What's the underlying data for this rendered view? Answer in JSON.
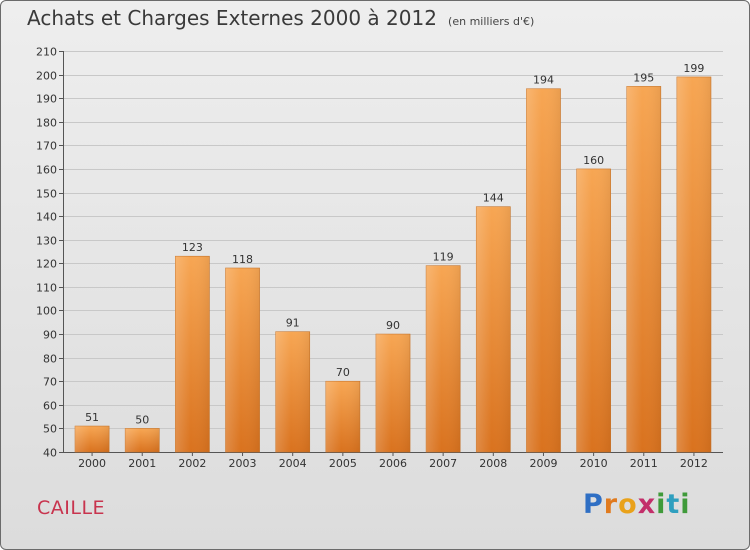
{
  "header": {
    "title": "Achats et Charges Externes 2000 à 2012",
    "subtitle": "(en milliers d'€)"
  },
  "footer": {
    "commune": "CAILLE",
    "brand": "Proxiti"
  },
  "colors": {
    "bar_top": "#f7a653",
    "bar_bottom": "#d9721e",
    "grid": "#c8c8c8",
    "commune_text": "#c8344e"
  },
  "chart_data": {
    "type": "bar",
    "categories": [
      "2000",
      "2001",
      "2002",
      "2003",
      "2004",
      "2005",
      "2006",
      "2007",
      "2008",
      "2009",
      "2010",
      "2011",
      "2012"
    ],
    "values": [
      51,
      50,
      123,
      118,
      91,
      70,
      90,
      119,
      144,
      194,
      160,
      195,
      199
    ],
    "data_labels": [
      "51",
      "50",
      "123",
      "118",
      "91",
      "70",
      "90",
      "119",
      "144",
      "194",
      "160",
      "195",
      "199"
    ],
    "ylim": [
      40,
      210
    ],
    "yticks": [
      40,
      50,
      60,
      70,
      80,
      90,
      100,
      110,
      120,
      130,
      140,
      150,
      160,
      170,
      180,
      190,
      200,
      210
    ],
    "grid": true,
    "legend": "none",
    "xlabel": "",
    "ylabel": ""
  }
}
